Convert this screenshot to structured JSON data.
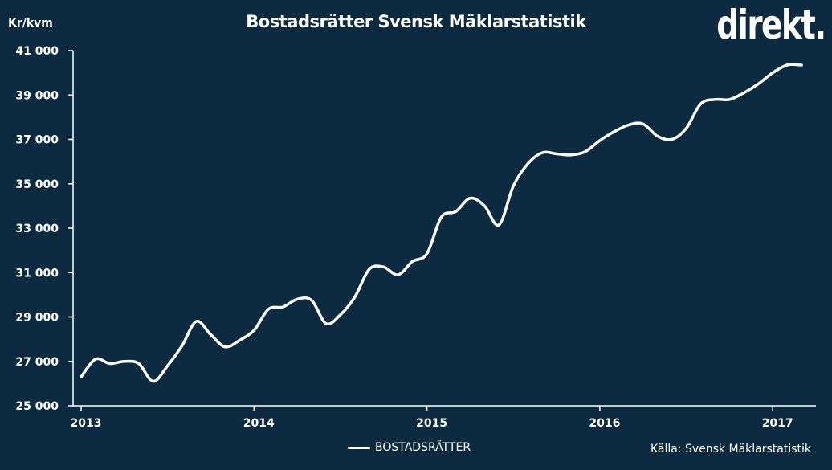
{
  "chart_data": {
    "type": "line",
    "title": "Bostadsrätter Svensk Mäklarstatistik",
    "ylabel": "Kr/kvm",
    "xlabel": "",
    "ylim": [
      25000,
      41000
    ],
    "y_ticks": [
      25000,
      27000,
      29000,
      31000,
      33000,
      35000,
      37000,
      39000,
      41000
    ],
    "y_tick_labels": [
      "25 000",
      "27 000",
      "29 000",
      "31 000",
      "33 000",
      "35 000",
      "37 000",
      "39 000",
      "41 000"
    ],
    "x_range": [
      "2013-01",
      "2017-04"
    ],
    "x_tick_labels": [
      "2013",
      "2014",
      "2015",
      "2016",
      "2017"
    ],
    "grid": false,
    "legend_position": "bottom-center",
    "series": [
      {
        "name": "BOSTADSRÄTTER",
        "color": "#ffffff",
        "x": [
          "2013-01",
          "2013-02",
          "2013-03",
          "2013-04",
          "2013-05",
          "2013-06",
          "2013-07",
          "2013-08",
          "2013-09",
          "2013-10",
          "2013-11",
          "2013-12",
          "2014-01",
          "2014-02",
          "2014-03",
          "2014-04",
          "2014-05",
          "2014-06",
          "2014-07",
          "2014-08",
          "2014-09",
          "2014-10",
          "2014-11",
          "2014-12",
          "2015-01",
          "2015-02",
          "2015-03",
          "2015-04",
          "2015-05",
          "2015-06",
          "2015-07",
          "2015-08",
          "2015-09",
          "2015-10",
          "2015-11",
          "2015-12",
          "2016-01",
          "2016-02",
          "2016-03",
          "2016-04",
          "2016-05",
          "2016-06",
          "2016-07",
          "2016-08",
          "2016-09",
          "2016-10",
          "2016-11",
          "2016-12",
          "2017-01",
          "2017-02",
          "2017-03"
        ],
        "y": [
          26300,
          27100,
          26900,
          27000,
          26900,
          26100,
          26800,
          27700,
          28800,
          28200,
          27650,
          27950,
          28400,
          29350,
          29450,
          29800,
          29750,
          28700,
          29100,
          29900,
          31150,
          31250,
          30900,
          31500,
          31850,
          33500,
          33750,
          34350,
          34000,
          33150,
          34900,
          35900,
          36400,
          36350,
          36300,
          36450,
          36950,
          37350,
          37650,
          37700,
          37150,
          37000,
          37500,
          38600,
          38800,
          38800,
          39100,
          39500,
          40000,
          40350,
          40350
        ]
      }
    ]
  },
  "labels": {
    "unit": "Kr/kvm",
    "title": "Bostadsrätter Svensk Mäklarstatistik",
    "logo": "direkt.",
    "legend": "BOSTADSRÄTTER",
    "source": "Källa: Svensk Mäklarstatistik"
  },
  "colors": {
    "background": "#0d2b40",
    "line": "#ffffff",
    "text": "#ffffff"
  }
}
